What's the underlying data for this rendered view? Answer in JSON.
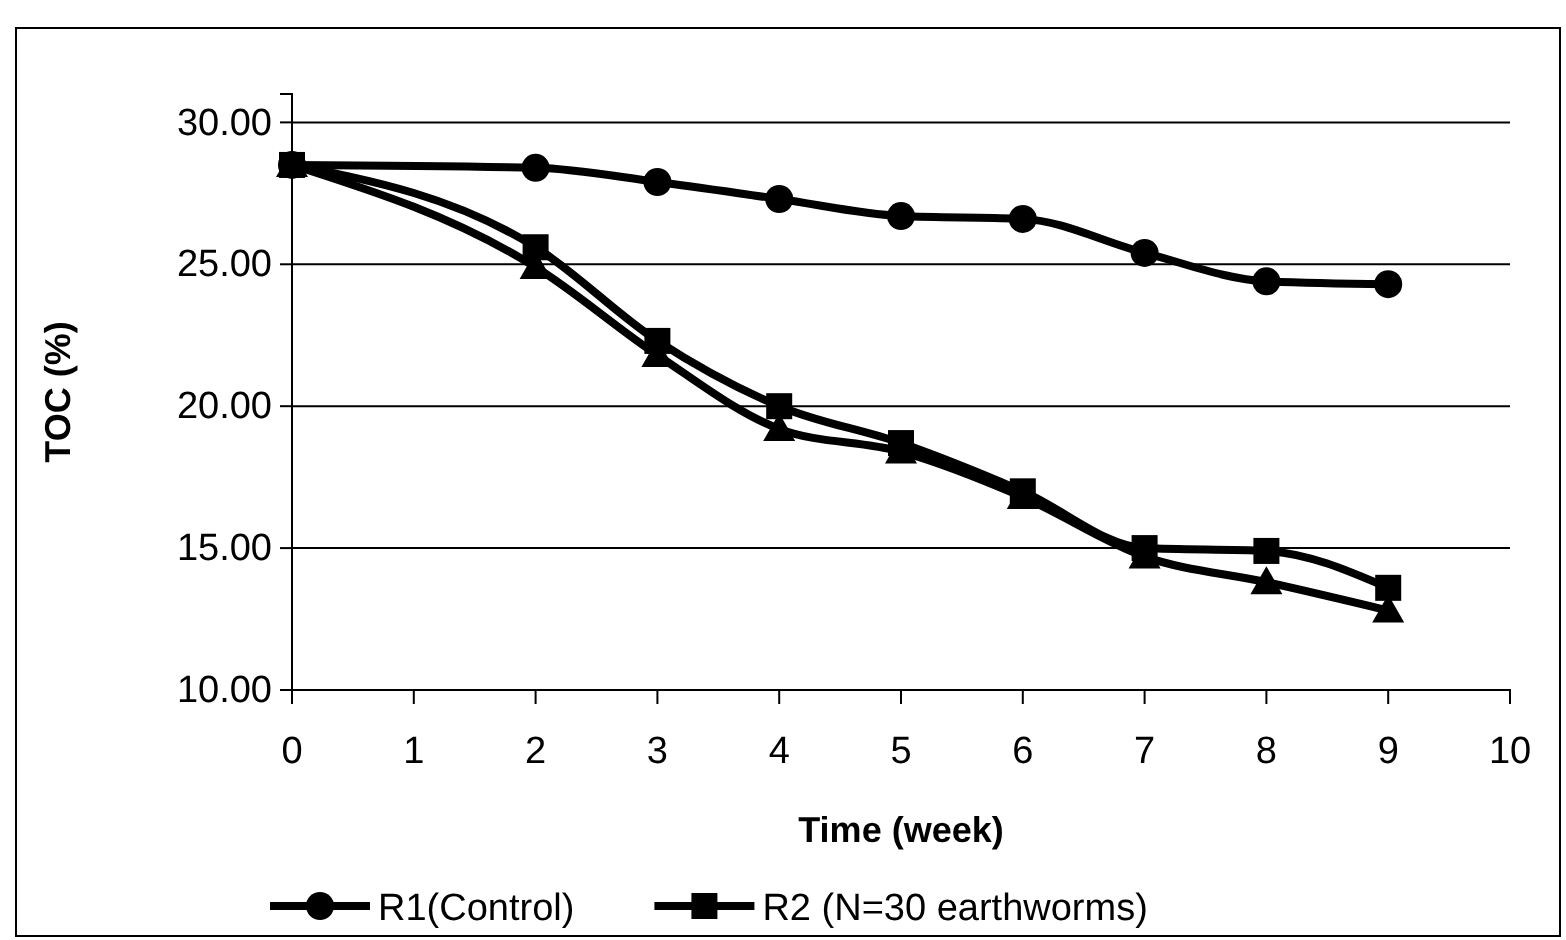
{
  "chart_data": {
    "type": "line",
    "xlabel": "Time (week)",
    "ylabel": "TOC (%)",
    "xlim": [
      0,
      10
    ],
    "xticks": [
      0,
      1,
      2,
      3,
      4,
      5,
      6,
      7,
      8,
      9,
      10
    ],
    "ylim": [
      10,
      31
    ],
    "yticks": [
      {
        "value": 10,
        "label": "10.00"
      },
      {
        "value": 15,
        "label": "15.00"
      },
      {
        "value": 20,
        "label": "20.00"
      },
      {
        "value": 25,
        "label": "25.00"
      },
      {
        "value": 30,
        "label": "30.00"
      }
    ],
    "x": [
      0,
      2,
      3,
      4,
      5,
      6,
      7,
      8,
      9
    ],
    "grid": "y",
    "legend": "bottom",
    "series": [
      {
        "name": "R1(Control)",
        "color": "#000000",
        "marker": "circle",
        "values": [
          28.5,
          28.4,
          27.9,
          27.3,
          26.7,
          26.6,
          25.4,
          24.4,
          24.3
        ]
      },
      {
        "name": "R2 (N=30 earthworms)",
        "color": "#000000",
        "marker": "square",
        "values": [
          28.5,
          25.6,
          22.3,
          20.0,
          18.7,
          17.0,
          15.0,
          14.9,
          13.6
        ]
      },
      {
        "color": "#000000",
        "marker": "triangle",
        "values": [
          28.5,
          24.9,
          21.8,
          19.2,
          18.4,
          16.8,
          14.7,
          13.8,
          12.8
        ]
      }
    ]
  }
}
